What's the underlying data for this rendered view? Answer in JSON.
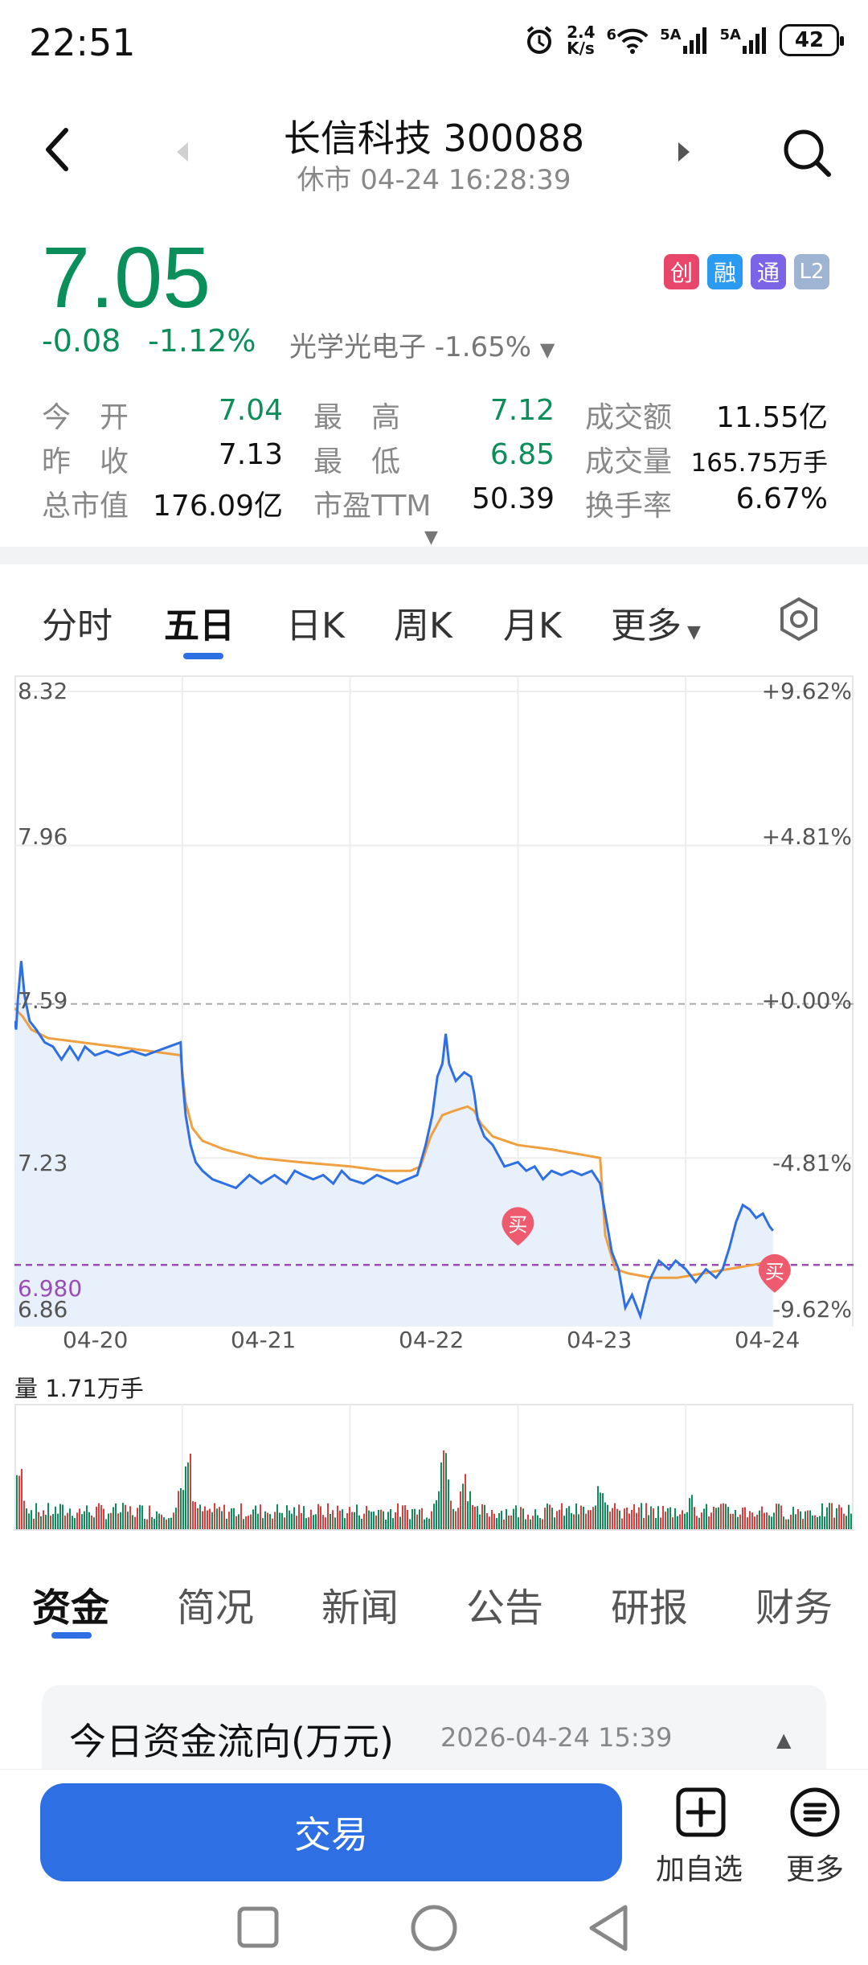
{
  "status_bar": {
    "time": "22:51",
    "net_speed_top": "2.4",
    "net_speed_unit": "K/s",
    "wifi_label": "6",
    "signal1_label": "5A",
    "signal2_label": "5A",
    "battery": "42",
    "icons": [
      "alarm-icon",
      "wifi-icon",
      "signal-icon",
      "signal-icon",
      "battery-icon"
    ]
  },
  "header": {
    "title": "长信科技 300088",
    "subtitle": "休市 04-24 16:28:39"
  },
  "quote": {
    "price": "7.05",
    "change": "-0.08",
    "change_pct": "-1.12%",
    "sector_name": "光学光电子",
    "sector_pct": "-1.65%",
    "badges": [
      "创",
      "融",
      "通",
      "L2"
    ],
    "badge_colors": [
      "#e8466b",
      "#2a9bf0",
      "#7b64e6",
      "#9fb3d3"
    ]
  },
  "stats": {
    "open_label": "今　开",
    "open": "7.04",
    "high_label": "最　高",
    "high": "7.12",
    "amount_label": "成交额",
    "amount": "11.55亿",
    "prev_label": "昨　收",
    "prev": "7.13",
    "low_label": "最　低",
    "low": "6.85",
    "volume_label": "成交量",
    "volume": "165.75万手",
    "mcap_label": "总市值",
    "mcap": "176.09亿",
    "pe_label": "市盈TTM",
    "pe": "50.39",
    "turnover_label": "换手率",
    "turnover": "6.67%"
  },
  "chart_tabs": [
    "分时",
    "五日",
    "日K",
    "周K",
    "月K",
    "更多"
  ],
  "chart_data": {
    "type": "line",
    "dates": [
      "04-20",
      "04-21",
      "04-22",
      "04-23",
      "04-24"
    ],
    "y_ticks_left": [
      "8.32",
      "7.96",
      "7.59",
      "7.23",
      "6.86"
    ],
    "y_ticks_right": [
      "+9.62%",
      "+4.81%",
      "+0.00%",
      "-4.81%",
      "-9.62%"
    ],
    "ylim": [
      6.86,
      8.32
    ],
    "prev_close": 7.59,
    "marker_line_label": "6.980",
    "marker_line_value": 6.98,
    "buy_label": "买",
    "buy_markers": [
      {
        "day": 3.0,
        "price": 7.07
      },
      {
        "day": 4.53,
        "price": 6.96
      }
    ],
    "series": [
      {
        "kind": "price",
        "points": [
          [
            0.0,
            7.55
          ],
          [
            0.01,
            7.53
          ],
          [
            0.02,
            7.6
          ],
          [
            0.04,
            7.69
          ],
          [
            0.06,
            7.61
          ],
          [
            0.09,
            7.55
          ],
          [
            0.13,
            7.53
          ],
          [
            0.18,
            7.5
          ],
          [
            0.23,
            7.49
          ],
          [
            0.28,
            7.46
          ],
          [
            0.33,
            7.49
          ],
          [
            0.38,
            7.46
          ],
          [
            0.42,
            7.49
          ],
          [
            0.48,
            7.47
          ],
          [
            0.55,
            7.48
          ],
          [
            0.62,
            7.47
          ],
          [
            0.7,
            7.48
          ],
          [
            0.78,
            7.47
          ],
          [
            0.85,
            7.48
          ],
          [
            0.92,
            7.49
          ],
          [
            0.99,
            7.5
          ],
          [
            1.0,
            7.42
          ],
          [
            1.02,
            7.33
          ],
          [
            1.05,
            7.26
          ],
          [
            1.08,
            7.22
          ],
          [
            1.12,
            7.2
          ],
          [
            1.18,
            7.18
          ],
          [
            1.25,
            7.17
          ],
          [
            1.32,
            7.16
          ],
          [
            1.4,
            7.19
          ],
          [
            1.47,
            7.17
          ],
          [
            1.55,
            7.19
          ],
          [
            1.62,
            7.17
          ],
          [
            1.67,
            7.2
          ],
          [
            1.72,
            7.19
          ],
          [
            1.78,
            7.18
          ],
          [
            1.84,
            7.19
          ],
          [
            1.9,
            7.17
          ],
          [
            1.95,
            7.2
          ],
          [
            2.0,
            7.18
          ],
          [
            2.08,
            7.17
          ],
          [
            2.16,
            7.19
          ],
          [
            2.22,
            7.18
          ],
          [
            2.28,
            7.17
          ],
          [
            2.34,
            7.18
          ],
          [
            2.4,
            7.19
          ],
          [
            2.45,
            7.26
          ],
          [
            2.49,
            7.33
          ],
          [
            2.52,
            7.42
          ],
          [
            2.55,
            7.45
          ],
          [
            2.57,
            7.52
          ],
          [
            2.59,
            7.45
          ],
          [
            2.63,
            7.41
          ],
          [
            2.68,
            7.43
          ],
          [
            2.72,
            7.42
          ],
          [
            2.74,
            7.38
          ],
          [
            2.76,
            7.32
          ],
          [
            2.8,
            7.28
          ],
          [
            2.85,
            7.26
          ],
          [
            2.92,
            7.21
          ],
          [
            3.0,
            7.22
          ],
          [
            3.05,
            7.2
          ],
          [
            3.1,
            7.21
          ],
          [
            3.15,
            7.18
          ],
          [
            3.2,
            7.2
          ],
          [
            3.26,
            7.19
          ],
          [
            3.32,
            7.2
          ],
          [
            3.38,
            7.19
          ],
          [
            3.44,
            7.2
          ],
          [
            3.49,
            7.17
          ],
          [
            3.52,
            7.1
          ],
          [
            3.56,
            7.01
          ],
          [
            3.6,
            6.97
          ],
          [
            3.64,
            6.88
          ],
          [
            3.68,
            6.91
          ],
          [
            3.73,
            6.86
          ],
          [
            3.78,
            6.94
          ],
          [
            3.84,
            6.99
          ],
          [
            3.9,
            6.97
          ],
          [
            3.94,
            6.99
          ],
          [
            4.0,
            6.97
          ],
          [
            4.06,
            6.94
          ],
          [
            4.12,
            6.97
          ],
          [
            4.18,
            6.95
          ],
          [
            4.22,
            6.97
          ],
          [
            4.26,
            7.02
          ],
          [
            4.3,
            7.08
          ],
          [
            4.34,
            7.12
          ],
          [
            4.38,
            7.11
          ],
          [
            4.42,
            7.09
          ],
          [
            4.46,
            7.1
          ],
          [
            4.5,
            7.07
          ],
          [
            4.52,
            7.06
          ]
        ]
      },
      {
        "kind": "average",
        "points": [
          [
            0.0,
            7.58
          ],
          [
            0.05,
            7.56
          ],
          [
            0.1,
            7.53
          ],
          [
            0.2,
            7.51
          ],
          [
            0.4,
            7.5
          ],
          [
            0.6,
            7.49
          ],
          [
            0.8,
            7.48
          ],
          [
            0.99,
            7.47
          ],
          [
            1.02,
            7.36
          ],
          [
            1.06,
            7.3
          ],
          [
            1.12,
            7.27
          ],
          [
            1.25,
            7.25
          ],
          [
            1.45,
            7.23
          ],
          [
            1.7,
            7.22
          ],
          [
            2.0,
            7.21
          ],
          [
            2.2,
            7.2
          ],
          [
            2.36,
            7.2
          ],
          [
            2.42,
            7.21
          ],
          [
            2.48,
            7.28
          ],
          [
            2.55,
            7.33
          ],
          [
            2.62,
            7.34
          ],
          [
            2.7,
            7.35
          ],
          [
            2.74,
            7.34
          ],
          [
            2.78,
            7.31
          ],
          [
            2.85,
            7.28
          ],
          [
            3.0,
            7.26
          ],
          [
            3.2,
            7.25
          ],
          [
            3.49,
            7.23
          ],
          [
            3.52,
            7.05
          ],
          [
            3.58,
            6.97
          ],
          [
            3.66,
            6.96
          ],
          [
            3.8,
            6.95
          ],
          [
            3.95,
            6.95
          ],
          [
            4.1,
            6.96
          ],
          [
            4.25,
            6.97
          ],
          [
            4.4,
            6.98
          ],
          [
            4.52,
            6.99
          ]
        ]
      }
    ],
    "volume_label": "量",
    "volume_value": "1.71万手"
  },
  "bottom_tabs": [
    "资金",
    "简况",
    "新闻",
    "公告",
    "研报",
    "财务"
  ],
  "fund_flow": {
    "title": "今日资金流向(万元)",
    "datetime": "2026-04-24 15:39"
  },
  "actions": {
    "trade": "交易",
    "add_watch": "加自选",
    "more": "更多"
  },
  "colors": {
    "accent": "#2f6fe4",
    "down": "#0a8f5a",
    "up": "#e23b3b",
    "price_line": "#2f6fe4",
    "avg_line": "#f0a040"
  }
}
